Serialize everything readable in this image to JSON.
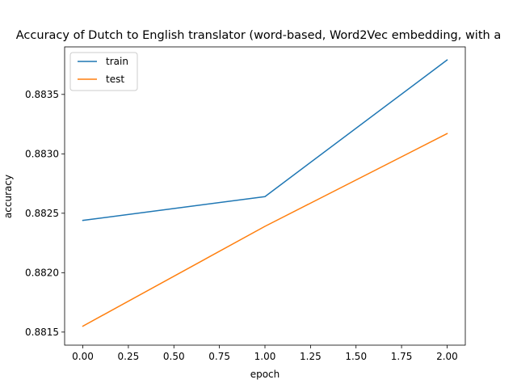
{
  "chart_data": {
    "type": "line",
    "title": "Accuracy of Dutch to English translator (word-based, Word2Vec embedding, with a",
    "xlabel": "epoch",
    "ylabel": "accuracy",
    "x": [
      0,
      1,
      2
    ],
    "series": [
      {
        "name": "train",
        "color": "#1f77b4",
        "values": [
          0.88244,
          0.88264,
          0.88379
        ]
      },
      {
        "name": "test",
        "color": "#ff7f0e",
        "values": [
          0.88155,
          0.88239,
          0.88317
        ]
      }
    ],
    "xlim": [
      -0.1,
      2.1
    ],
    "ylim": [
      0.88139,
      0.8839
    ],
    "xticks": [
      0.0,
      0.25,
      0.5,
      0.75,
      1.0,
      1.25,
      1.5,
      1.75,
      2.0
    ],
    "xtick_labels": [
      "0.00",
      "0.25",
      "0.50",
      "0.75",
      "1.00",
      "1.25",
      "1.50",
      "1.75",
      "2.00"
    ],
    "yticks": [
      0.8815,
      0.882,
      0.8825,
      0.883,
      0.8835
    ],
    "ytick_labels": [
      "0.8815",
      "0.8820",
      "0.8825",
      "0.8830",
      "0.8835"
    ],
    "grid": false,
    "legend_position": "upper left"
  }
}
